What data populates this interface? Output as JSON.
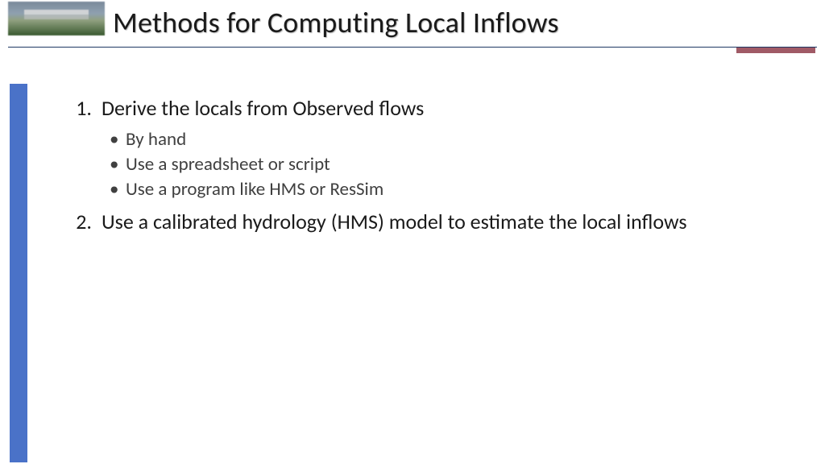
{
  "title": "Methods for Computing Local Inflows",
  "colors": {
    "rule": "#1f3864",
    "accent": "#a05a66",
    "sidebar": "#4a72c8",
    "text": "#1a1a1a",
    "subtext": "#404040",
    "background": "#ffffff"
  },
  "typography": {
    "title_fontsize": 36,
    "body_fontsize": 26,
    "sub_fontsize": 23,
    "family": "Calibri"
  },
  "list": {
    "items": [
      {
        "num": "1.",
        "text": "Derive the locals from Observed flows",
        "subs": [
          "By hand",
          "Use a spreadsheet or script",
          "Use a program like HMS or ResSim"
        ]
      },
      {
        "num": "2.",
        "text": "Use a calibrated hydrology (HMS) model to estimate the local inflows",
        "subs": []
      }
    ]
  }
}
